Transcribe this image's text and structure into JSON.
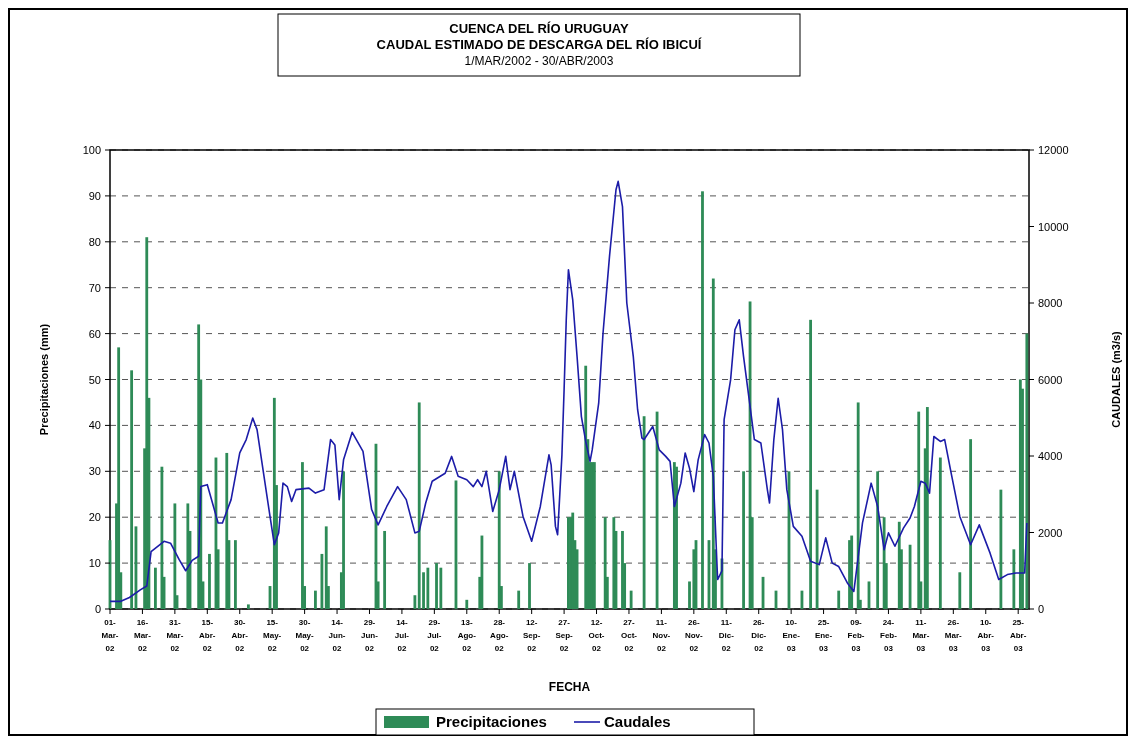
{
  "chart_data": {
    "type": "bar",
    "title": "CUENCA DEL RÍO URUGUAY\nCAUDAL ESTIMADO DE DESCARGA DEL RÍO IBICUÍ",
    "subtitle": "1/MAR/2002 - 30/ABR/2003",
    "xlabel": "FECHA",
    "ylabel": "Precipitaciones (mm)",
    "y2label": "CAUDALES (m3/s)",
    "xlim": [
      "2002-03-01",
      "2003-04-30"
    ],
    "xticks": [
      {
        "value": "2002-03-01",
        "label": "01-Mar-02"
      },
      {
        "value": "2002-03-16",
        "label": "16-Mar-02"
      },
      {
        "value": "2002-03-31",
        "label": "31-Mar-02"
      },
      {
        "value": "2002-04-15",
        "label": "15-Abr-02"
      },
      {
        "value": "2002-04-30",
        "label": "30-Abr-02"
      },
      {
        "value": "2002-05-15",
        "label": "15-May-02"
      },
      {
        "value": "2002-05-30",
        "label": "30-May-02"
      },
      {
        "value": "2002-06-14",
        "label": "14-Jun-02"
      },
      {
        "value": "2002-06-29",
        "label": "29-Jun-02"
      },
      {
        "value": "2002-07-14",
        "label": "14-Jul-02"
      },
      {
        "value": "2002-07-29",
        "label": "29-Jul-02"
      },
      {
        "value": "2002-08-13",
        "label": "13-Ago-02"
      },
      {
        "value": "2002-08-28",
        "label": "28-Ago-02"
      },
      {
        "value": "2002-09-12",
        "label": "12-Sep-02"
      },
      {
        "value": "2002-09-27",
        "label": "27-Sep-02"
      },
      {
        "value": "2002-10-12",
        "label": "12-Oct-02"
      },
      {
        "value": "2002-10-27",
        "label": "27-Oct-02"
      },
      {
        "value": "2002-11-11",
        "label": "11-Nov-02"
      },
      {
        "value": "2002-11-26",
        "label": "26-Nov-02"
      },
      {
        "value": "2002-12-11",
        "label": "11-Dic-02"
      },
      {
        "value": "2002-12-26",
        "label": "26-Dic-02"
      },
      {
        "value": "2003-01-10",
        "label": "10-Ene-03"
      },
      {
        "value": "2003-01-25",
        "label": "25-Ene-03"
      },
      {
        "value": "2003-02-09",
        "label": "09-Feb-03"
      },
      {
        "value": "2003-02-24",
        "label": "24-Feb-03"
      },
      {
        "value": "2003-03-11",
        "label": "11-Mar-03"
      },
      {
        "value": "2003-03-26",
        "label": "26-Mar-03"
      },
      {
        "value": "2003-04-10",
        "label": "10-Abr-03"
      },
      {
        "value": "2003-04-25",
        "label": "25-Abr-03"
      }
    ],
    "ylim": [
      0,
      100
    ],
    "yticks": [
      0,
      10,
      20,
      30,
      40,
      50,
      60,
      70,
      80,
      90,
      100
    ],
    "y2lim": [
      0,
      12000
    ],
    "y2ticks": [
      0,
      2000,
      4000,
      6000,
      8000,
      10000,
      12000
    ],
    "grid": "y",
    "legend": "bottom",
    "series": [
      {
        "name": "Precipitaciones",
        "color": "#2e8b57",
        "x": [
          "2002-03-01",
          "2002-03-04",
          "2002-03-05",
          "2002-03-06",
          "2002-03-11",
          "2002-03-13",
          "2002-03-17",
          "2002-03-18",
          "2002-03-19",
          "2002-03-22",
          "2002-03-25",
          "2002-03-26",
          "2002-03-31",
          "2002-04-01",
          "2002-04-06",
          "2002-04-07",
          "2002-04-11",
          "2002-04-12",
          "2002-04-13",
          "2002-04-16",
          "2002-04-19",
          "2002-04-20",
          "2002-04-24",
          "2002-04-25",
          "2002-04-28",
          "2002-05-04",
          "2002-05-14",
          "2002-05-16",
          "2002-05-17",
          "2002-05-29",
          "2002-05-30",
          "2002-06-04",
          "2002-06-07",
          "2002-06-09",
          "2002-06-10",
          "2002-06-16",
          "2002-06-17",
          "2002-07-02",
          "2002-07-03",
          "2002-07-06",
          "2002-07-20",
          "2002-07-22",
          "2002-07-24",
          "2002-07-26",
          "2002-07-30",
          "2002-08-01",
          "2002-08-08",
          "2002-08-13",
          "2002-08-19",
          "2002-08-20",
          "2002-08-28",
          "2002-08-29",
          "2002-09-06",
          "2002-09-11",
          "2002-09-29",
          "2002-09-30",
          "2002-10-01",
          "2002-10-02",
          "2002-10-03",
          "2002-10-07",
          "2002-10-08",
          "2002-10-09",
          "2002-10-10",
          "2002-10-11",
          "2002-10-16",
          "2002-10-17",
          "2002-10-20",
          "2002-10-21",
          "2002-10-24",
          "2002-10-25",
          "2002-10-28",
          "2002-11-03",
          "2002-11-09",
          "2002-11-17",
          "2002-11-18",
          "2002-11-24",
          "2002-11-26",
          "2002-11-27",
          "2002-11-30",
          "2002-12-03",
          "2002-12-05",
          "2002-12-06",
          "2002-12-09",
          "2002-12-19",
          "2002-12-22",
          "2002-12-23",
          "2002-12-28",
          "2003-01-03",
          "2003-01-09",
          "2003-01-15",
          "2003-01-19",
          "2003-01-22",
          "2003-02-01",
          "2003-02-06",
          "2003-02-07",
          "2003-02-10",
          "2003-02-11",
          "2003-02-15",
          "2003-02-19",
          "2003-02-22",
          "2003-02-23",
          "2003-03-01",
          "2003-03-02",
          "2003-03-06",
          "2003-03-10",
          "2003-03-11",
          "2003-03-13",
          "2003-03-14",
          "2003-03-20",
          "2003-03-29",
          "2003-04-03",
          "2003-04-17",
          "2003-04-23",
          "2003-04-26",
          "2003-04-27",
          "2003-04-29"
        ],
        "values": [
          15,
          23,
          57,
          8,
          52,
          18,
          35,
          81,
          46,
          9,
          31,
          7,
          23,
          3,
          23,
          17,
          62,
          50,
          6,
          12,
          33,
          13,
          34,
          15,
          15,
          1,
          5,
          46,
          27,
          32,
          5,
          4,
          12,
          18,
          5,
          8,
          30,
          36,
          6,
          17,
          3,
          45,
          8,
          9,
          10,
          9,
          28,
          2,
          7,
          16,
          30,
          5,
          4,
          10,
          20,
          20,
          21,
          15,
          13,
          53,
          37,
          32,
          32,
          32,
          20,
          7,
          20,
          17,
          17,
          10,
          4,
          42,
          43,
          32,
          31,
          6,
          13,
          15,
          91,
          15,
          72,
          13,
          11,
          30,
          67,
          20,
          7,
          4,
          30,
          4,
          63,
          26,
          4,
          15,
          16,
          45,
          2,
          6,
          30,
          20,
          10,
          19,
          13,
          14,
          43,
          6,
          35,
          44,
          33,
          8,
          37,
          26,
          13,
          50,
          48,
          60
        ]
      },
      {
        "name": "Caudales",
        "type": "line",
        "axis": "y2",
        "color": "#1c1ca8",
        "marker": "none",
        "x": [
          "2002-03-01",
          "2002-03-06",
          "2002-03-10",
          "2002-03-15",
          "2002-03-18",
          "2002-03-20",
          "2002-03-26",
          "2002-03-29",
          "2002-04-02",
          "2002-04-05",
          "2002-04-08",
          "2002-04-11",
          "2002-04-12",
          "2002-04-15",
          "2002-04-20",
          "2002-04-22",
          "2002-04-26",
          "2002-04-30",
          "2002-05-03",
          "2002-05-06",
          "2002-05-08",
          "2002-05-11",
          "2002-05-14",
          "2002-05-16",
          "2002-05-18",
          "2002-05-20",
          "2002-05-22",
          "2002-05-24",
          "2002-05-26",
          "2002-06-01",
          "2002-06-04",
          "2002-06-08",
          "2002-06-11",
          "2002-06-13",
          "2002-06-15",
          "2002-06-17",
          "2002-06-21",
          "2002-06-26",
          "2002-06-30",
          "2002-07-03",
          "2002-07-07",
          "2002-07-12",
          "2002-07-16",
          "2002-07-20",
          "2002-07-22",
          "2002-07-25",
          "2002-07-28",
          "2002-08-03",
          "2002-08-06",
          "2002-08-09",
          "2002-08-13",
          "2002-08-16",
          "2002-08-18",
          "2002-08-20",
          "2002-08-22",
          "2002-08-25",
          "2002-08-28",
          "2002-08-31",
          "2002-09-02",
          "2002-09-04",
          "2002-09-08",
          "2002-09-12",
          "2002-09-16",
          "2002-09-20",
          "2002-09-21",
          "2002-09-23",
          "2002-09-24",
          "2002-09-26",
          "2002-09-27",
          "2002-09-28",
          "2002-09-29",
          "2002-10-01",
          "2002-10-03",
          "2002-10-05",
          "2002-10-07",
          "2002-10-09",
          "2002-10-10",
          "2002-10-13",
          "2002-10-15",
          "2002-10-18",
          "2002-10-21",
          "2002-10-22",
          "2002-10-24",
          "2002-10-26",
          "2002-10-29",
          "2002-10-31",
          "2002-11-02",
          "2002-11-03",
          "2002-11-07",
          "2002-11-10",
          "2002-11-13",
          "2002-11-15",
          "2002-11-17",
          "2002-11-20",
          "2002-11-22",
          "2002-11-24",
          "2002-11-26",
          "2002-11-28",
          "2002-12-01",
          "2002-12-03",
          "2002-12-05",
          "2002-12-07",
          "2002-12-09",
          "2002-12-10",
          "2002-12-13",
          "2002-12-15",
          "2002-12-17",
          "2002-12-19",
          "2002-12-22",
          "2002-12-24",
          "2002-12-27",
          "2002-12-30",
          "2002-12-31",
          "2003-01-02",
          "2003-01-04",
          "2003-01-06",
          "2003-01-08",
          "2003-01-11",
          "2003-01-15",
          "2003-01-19",
          "2003-01-23",
          "2003-01-26",
          "2003-01-29",
          "2003-02-01",
          "2003-02-05",
          "2003-02-08",
          "2003-02-12",
          "2003-02-16",
          "2003-02-19",
          "2003-02-22",
          "2003-02-24",
          "2003-02-27",
          "2003-03-03",
          "2003-03-06",
          "2003-03-08",
          "2003-03-11",
          "2003-03-13",
          "2003-03-15",
          "2003-03-17",
          "2003-03-20",
          "2003-03-22",
          "2003-03-25",
          "2003-03-29",
          "2003-04-03",
          "2003-04-07",
          "2003-04-12",
          "2003-04-16",
          "2003-04-20",
          "2003-04-24",
          "2003-04-28",
          "2003-04-29"
        ],
        "values": [
          200,
          200,
          300,
          500,
          600,
          1500,
          1770,
          1720,
          1290,
          1000,
          1270,
          1380,
          3200,
          3250,
          2250,
          2250,
          2860,
          4080,
          4430,
          4990,
          4690,
          3550,
          2420,
          1680,
          1990,
          3290,
          3200,
          2810,
          3120,
          3160,
          3030,
          3120,
          4430,
          4290,
          2860,
          3900,
          4620,
          4120,
          2600,
          2200,
          2680,
          3200,
          2860,
          1990,
          2030,
          2770,
          3340,
          3550,
          3990,
          3470,
          3380,
          3200,
          3380,
          3200,
          3600,
          2550,
          3120,
          3990,
          3120,
          3600,
          2420,
          1770,
          2680,
          4030,
          3770,
          2160,
          1940,
          4030,
          5730,
          7560,
          8870,
          8080,
          6600,
          5030,
          4380,
          3860,
          4160,
          5380,
          7210,
          9220,
          10960,
          11180,
          10520,
          8000,
          6600,
          5210,
          4470,
          4430,
          4770,
          4160,
          3990,
          3860,
          2680,
          3290,
          4080,
          3680,
          3070,
          3900,
          4560,
          4340,
          3470,
          770,
          1000,
          4950,
          5990,
          7300,
          7560,
          6600,
          5300,
          4430,
          4340,
          3120,
          2770,
          4430,
          5510,
          4690,
          3120,
          2160,
          1900,
          1250,
          1160,
          1860,
          1200,
          1110,
          680,
          460,
          2250,
          3290,
          2680,
          1550,
          1990,
          1640,
          2120,
          2380,
          2680,
          3340,
          3290,
          3030,
          4510,
          4380,
          4430,
          3550,
          2420,
          1680,
          2200,
          1460,
          770,
          900,
          940,
          940,
          2250
        ]
      }
    ]
  }
}
